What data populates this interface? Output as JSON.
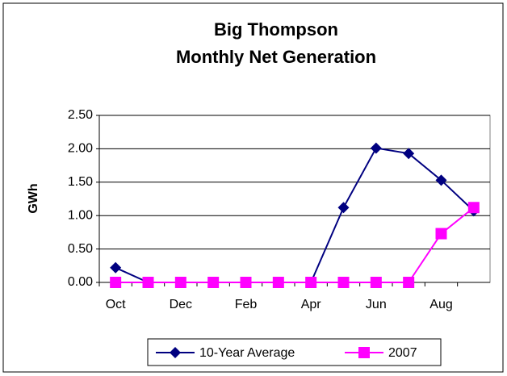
{
  "chart_data": {
    "type": "line",
    "title": [
      "Big Thompson",
      "Monthly Net Generation"
    ],
    "y_label": "GWh",
    "categories": [
      "Oct",
      null,
      "Dec",
      null,
      "Feb",
      null,
      "Apr",
      null,
      "Jun",
      null,
      "Aug",
      null
    ],
    "series": [
      {
        "name": "10-Year Average",
        "color": "#000080",
        "marker": "diamond",
        "values": [
          0.22,
          0,
          0,
          0,
          0,
          0,
          0,
          1.12,
          2.01,
          1.93,
          1.53,
          1.07
        ]
      },
      {
        "name": "2007",
        "color": "#ff00ff",
        "marker": "square",
        "values": [
          0,
          0,
          0,
          0,
          0,
          0,
          0,
          0,
          0,
          0,
          0.73,
          1.12
        ]
      }
    ],
    "ylim": [
      0,
      2.5
    ],
    "yticks": [
      {
        "value": 0,
        "label": "0.00"
      },
      {
        "value": 0.5,
        "label": "0.50"
      },
      {
        "value": 1,
        "label": "1.00"
      },
      {
        "value": 1.5,
        "label": "1.50"
      },
      {
        "value": 2,
        "label": "2.00"
      },
      {
        "value": 2.5,
        "label": "2.50"
      }
    ],
    "grid": true,
    "legend": "bottom"
  }
}
